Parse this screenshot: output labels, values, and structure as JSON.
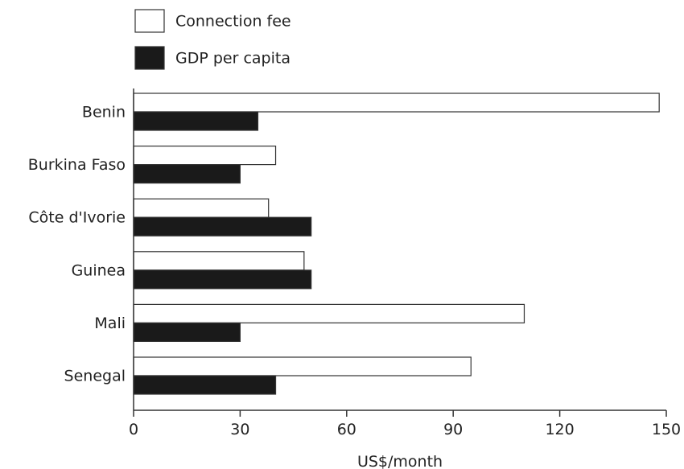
{
  "chart_data": {
    "type": "bar",
    "orientation": "horizontal",
    "categories": [
      "Benin",
      "Burkina Faso",
      "Côte d'Ivorie",
      "Guinea",
      "Mali",
      "Senegal"
    ],
    "series": [
      {
        "name": "Connection fee",
        "color": "#ffffff",
        "values": [
          148,
          40,
          38,
          48,
          110,
          95
        ]
      },
      {
        "name": "GDP per capita",
        "color": "#1a1a1a",
        "values": [
          35,
          30,
          50,
          50,
          30,
          40
        ]
      }
    ],
    "xlabel": "US$/month",
    "xlim": [
      0,
      150
    ],
    "xticks": [
      0,
      30,
      60,
      90,
      120,
      150
    ],
    "legend_position": "top-left",
    "grid": false
  }
}
